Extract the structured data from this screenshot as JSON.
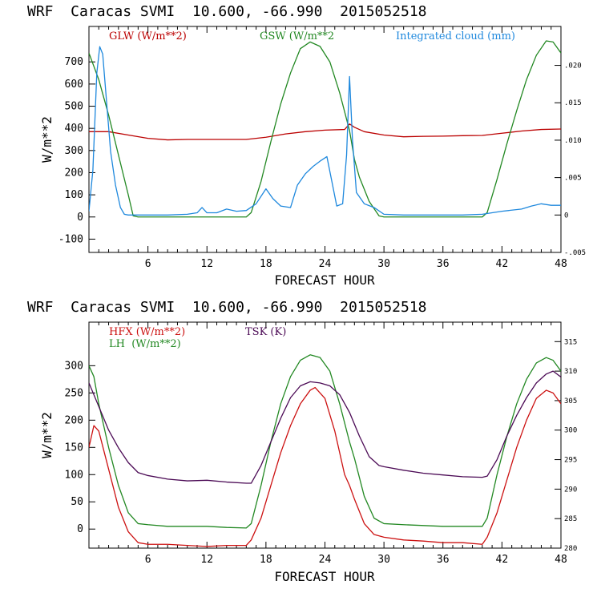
{
  "chart_data": [
    {
      "type": "line",
      "title": "WRF  Caracas SVMI  10.600, -66.990  2015052518",
      "xlabel": "FORECAST HOUR",
      "ylabel": "W/m**2",
      "xlim": [
        0,
        48
      ],
      "ylim": [
        -160,
        860
      ],
      "y2lim": [
        -0.005,
        0.0252
      ],
      "xticks": [
        "6",
        "12",
        "18",
        "24",
        "30",
        "36",
        "42",
        "48"
      ],
      "yticks": [
        "-100",
        "0",
        "100",
        "200",
        "300",
        "400",
        "500",
        "600",
        "700"
      ],
      "y2ticks": [
        "-.005",
        "0",
        ".005",
        ".010",
        ".015",
        ".020"
      ],
      "series": [
        {
          "name": "GLW (W/m**2)",
          "color": "#bb0000",
          "axis": "left",
          "points": [
            [
              0,
              385
            ],
            [
              2,
              385
            ],
            [
              4,
              370
            ],
            [
              6,
              355
            ],
            [
              8,
              348
            ],
            [
              10,
              350
            ],
            [
              12,
              350
            ],
            [
              14,
              350
            ],
            [
              16,
              350
            ],
            [
              18,
              360
            ],
            [
              20,
              375
            ],
            [
              22,
              385
            ],
            [
              24,
              392
            ],
            [
              26,
              395
            ],
            [
              26.5,
              420
            ],
            [
              27,
              405
            ],
            [
              28,
              385
            ],
            [
              30,
              370
            ],
            [
              32,
              362
            ],
            [
              34,
              364
            ],
            [
              36,
              365
            ],
            [
              38,
              367
            ],
            [
              40,
              368
            ],
            [
              42,
              378
            ],
            [
              44,
              388
            ],
            [
              46,
              395
            ],
            [
              48,
              397
            ]
          ]
        },
        {
          "name": "GSW (W/m**2",
          "color": "#228822",
          "axis": "left",
          "points": [
            [
              0,
              740
            ],
            [
              1,
              620
            ],
            [
              2,
              460
            ],
            [
              3,
              280
            ],
            [
              4,
              100
            ],
            [
              4.5,
              5
            ],
            [
              5,
              0
            ],
            [
              8,
              0
            ],
            [
              10,
              0
            ],
            [
              12,
              0
            ],
            [
              14,
              0
            ],
            [
              16,
              0
            ],
            [
              16.5,
              20
            ],
            [
              17.5,
              160
            ],
            [
              18.5,
              340
            ],
            [
              19.5,
              510
            ],
            [
              20.5,
              650
            ],
            [
              21.5,
              760
            ],
            [
              22.5,
              790
            ],
            [
              23.5,
              770
            ],
            [
              24.5,
              700
            ],
            [
              25.5,
              560
            ],
            [
              26.5,
              390
            ],
            [
              27,
              260
            ],
            [
              27.5,
              180
            ],
            [
              28.5,
              70
            ],
            [
              29.5,
              5
            ],
            [
              30,
              0
            ],
            [
              36,
              0
            ],
            [
              40,
              0
            ],
            [
              40.5,
              20
            ],
            [
              41.5,
              170
            ],
            [
              42.5,
              330
            ],
            [
              43.5,
              480
            ],
            [
              44.5,
              620
            ],
            [
              45.5,
              730
            ],
            [
              46.5,
              795
            ],
            [
              47.2,
              790
            ],
            [
              48,
              740
            ]
          ]
        },
        {
          "name": "Integrated cloud (mm)",
          "color": "#1e88dd",
          "axis": "right",
          "points": [
            [
              0,
              0.0005
            ],
            [
              0.4,
              0.006
            ],
            [
              0.8,
              0.019
            ],
            [
              1.1,
              0.0225
            ],
            [
              1.4,
              0.0215
            ],
            [
              1.8,
              0.015
            ],
            [
              2.2,
              0.0085
            ],
            [
              2.7,
              0.004
            ],
            [
              3.2,
              0.001
            ],
            [
              3.6,
              0.0001
            ],
            [
              4,
              0
            ],
            [
              6,
              0
            ],
            [
              8,
              0
            ],
            [
              10,
              0.0001
            ],
            [
              11,
              0.0003
            ],
            [
              11.5,
              0.001
            ],
            [
              12,
              0.0003
            ],
            [
              13,
              0.0003
            ],
            [
              14,
              0.0008
            ],
            [
              15,
              0.0005
            ],
            [
              16,
              0.0006
            ],
            [
              17,
              0.0015
            ],
            [
              18,
              0.0035
            ],
            [
              18.7,
              0.0022
            ],
            [
              19.5,
              0.0012
            ],
            [
              20.5,
              0.001
            ],
            [
              21.2,
              0.004
            ],
            [
              22,
              0.0055
            ],
            [
              22.8,
              0.0065
            ],
            [
              23.5,
              0.0072
            ],
            [
              24.2,
              0.0078
            ],
            [
              24.7,
              0.0045
            ],
            [
              25.2,
              0.0012
            ],
            [
              25.8,
              0.0015
            ],
            [
              26.2,
              0.008
            ],
            [
              26.5,
              0.0185
            ],
            [
              26.8,
              0.01
            ],
            [
              27.2,
              0.003
            ],
            [
              28,
              0.0015
            ],
            [
              29,
              0.001
            ],
            [
              30,
              0.0001
            ],
            [
              32,
              0
            ],
            [
              36,
              0
            ],
            [
              38,
              0
            ],
            [
              40,
              0.0001
            ],
            [
              42,
              0.0005
            ],
            [
              44,
              0.0008
            ],
            [
              45,
              0.0012
            ],
            [
              46,
              0.0015
            ],
            [
              47,
              0.0013
            ],
            [
              48,
              0.0013
            ]
          ]
        }
      ],
      "legend": [
        "GLW (W/m**2)",
        "GSW (W/m**2",
        "Integrated cloud (mm)"
      ]
    },
    {
      "type": "line",
      "title": "WRF  Caracas SVMI  10.600, -66.990  2015052518",
      "xlabel": "FORECAST HOUR",
      "ylabel": "W/m**2",
      "xlim": [
        0,
        48
      ],
      "ylim": [
        -35,
        380
      ],
      "y2lim": [
        280,
        318.3
      ],
      "xticks": [
        "6",
        "12",
        "18",
        "24",
        "30",
        "36",
        "42",
        "48"
      ],
      "yticks": [
        "0",
        "50",
        "100",
        "150",
        "200",
        "250",
        "300"
      ],
      "y2ticks": [
        "280",
        "285",
        "290",
        "295",
        "300",
        "305",
        "310",
        "315"
      ],
      "series": [
        {
          "name": "HFX (W/m**2)",
          "color": "#cc1111",
          "axis": "left",
          "points": [
            [
              0,
              150
            ],
            [
              0.5,
              190
            ],
            [
              1,
              180
            ],
            [
              2,
              110
            ],
            [
              3,
              40
            ],
            [
              4,
              -5
            ],
            [
              5,
              -25
            ],
            [
              6,
              -28
            ],
            [
              8,
              -28
            ],
            [
              10,
              -30
            ],
            [
              12,
              -32
            ],
            [
              14,
              -30
            ],
            [
              16,
              -30
            ],
            [
              16.5,
              -20
            ],
            [
              17.5,
              20
            ],
            [
              18.5,
              80
            ],
            [
              19.5,
              140
            ],
            [
              20.5,
              190
            ],
            [
              21.5,
              230
            ],
            [
              22.5,
              255
            ],
            [
              23,
              260
            ],
            [
              24,
              240
            ],
            [
              25,
              180
            ],
            [
              26,
              100
            ],
            [
              26.5,
              80
            ],
            [
              27,
              55
            ],
            [
              28,
              10
            ],
            [
              29,
              -10
            ],
            [
              30,
              -15
            ],
            [
              32,
              -20
            ],
            [
              34,
              -22
            ],
            [
              36,
              -25
            ],
            [
              38,
              -25
            ],
            [
              40,
              -28
            ],
            [
              40.5,
              -15
            ],
            [
              41.5,
              30
            ],
            [
              42.5,
              90
            ],
            [
              43.5,
              150
            ],
            [
              44.5,
              200
            ],
            [
              45.5,
              240
            ],
            [
              46.5,
              255
            ],
            [
              47.2,
              250
            ],
            [
              48,
              230
            ]
          ]
        },
        {
          "name": "LH (W/m**2)",
          "color": "#228822",
          "axis": "left",
          "points": [
            [
              0,
              300
            ],
            [
              0.5,
              280
            ],
            [
              1,
              230
            ],
            [
              2,
              150
            ],
            [
              3,
              80
            ],
            [
              4,
              30
            ],
            [
              5,
              10
            ],
            [
              6,
              8
            ],
            [
              8,
              5
            ],
            [
              10,
              5
            ],
            [
              12,
              5
            ],
            [
              14,
              3
            ],
            [
              16,
              2
            ],
            [
              16.5,
              10
            ],
            [
              17.5,
              80
            ],
            [
              18.5,
              160
            ],
            [
              19.5,
              230
            ],
            [
              20.5,
              280
            ],
            [
              21.5,
              310
            ],
            [
              22.5,
              320
            ],
            [
              23.5,
              315
            ],
            [
              24.5,
              290
            ],
            [
              25.5,
              230
            ],
            [
              26.5,
              160
            ],
            [
              27,
              130
            ],
            [
              28,
              60
            ],
            [
              29,
              20
            ],
            [
              30,
              10
            ],
            [
              32,
              8
            ],
            [
              36,
              5
            ],
            [
              38,
              5
            ],
            [
              40,
              5
            ],
            [
              40.5,
              20
            ],
            [
              41.5,
              100
            ],
            [
              42.5,
              170
            ],
            [
              43.5,
              230
            ],
            [
              44.5,
              275
            ],
            [
              45.5,
              305
            ],
            [
              46.5,
              315
            ],
            [
              47.2,
              310
            ],
            [
              48,
              290
            ]
          ]
        },
        {
          "name": "TSK (K)",
          "color": "#4b0a55",
          "axis": "right",
          "points": [
            [
              0,
              308
            ],
            [
              1,
              304
            ],
            [
              2,
              300
            ],
            [
              3,
              297
            ],
            [
              4,
              294.5
            ],
            [
              5,
              292.8
            ],
            [
              6,
              292.3
            ],
            [
              8,
              291.7
            ],
            [
              10,
              291.4
            ],
            [
              12,
              291.5
            ],
            [
              14,
              291.2
            ],
            [
              16,
              291
            ],
            [
              16.5,
              291
            ],
            [
              17.5,
              294
            ],
            [
              18.5,
              298
            ],
            [
              19.5,
              302
            ],
            [
              20.5,
              305.5
            ],
            [
              21.5,
              307.5
            ],
            [
              22.5,
              308.2
            ],
            [
              23.5,
              308
            ],
            [
              24.5,
              307.5
            ],
            [
              25.5,
              306
            ],
            [
              26.5,
              303
            ],
            [
              27.5,
              299
            ],
            [
              28.5,
              295.5
            ],
            [
              29.5,
              294
            ],
            [
              30,
              293.8
            ],
            [
              32,
              293.2
            ],
            [
              34,
              292.7
            ],
            [
              36,
              292.4
            ],
            [
              38,
              292.1
            ],
            [
              40,
              292
            ],
            [
              40.5,
              292.2
            ],
            [
              41.5,
              295
            ],
            [
              42.5,
              299
            ],
            [
              43.5,
              302.5
            ],
            [
              44.5,
              305.5
            ],
            [
              45.5,
              308
            ],
            [
              46.5,
              309.5
            ],
            [
              47.2,
              310
            ],
            [
              48,
              309
            ]
          ]
        }
      ],
      "legend": [
        "HFX (W/m**2)",
        "LH  (W/m**2)",
        "TSK (K)"
      ]
    }
  ]
}
